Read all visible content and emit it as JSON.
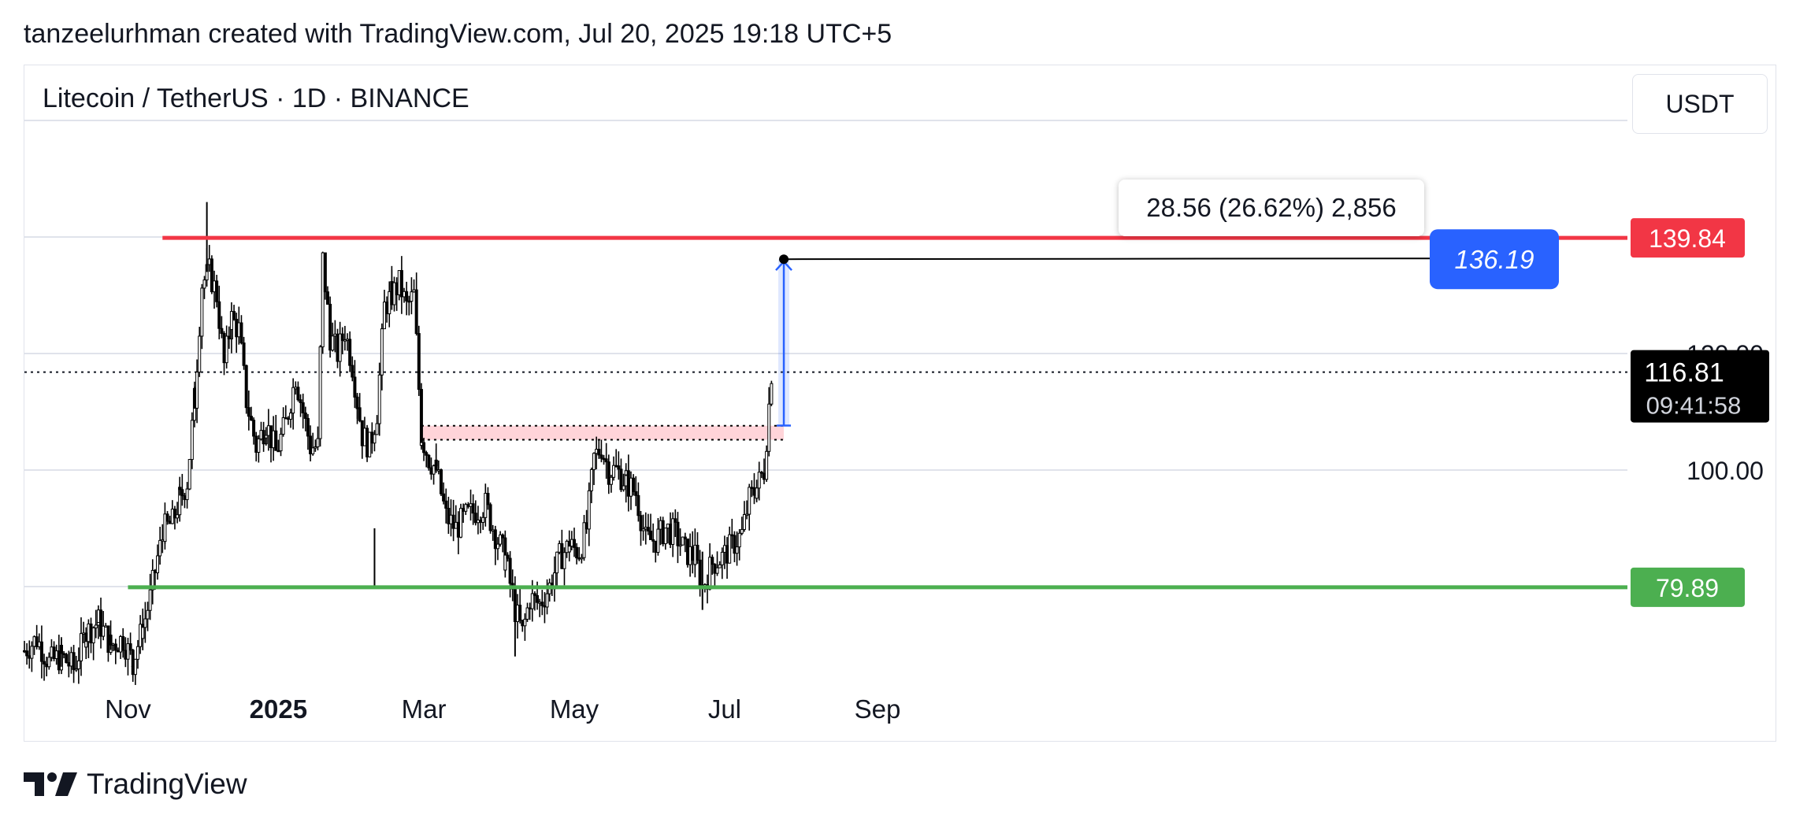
{
  "header": {
    "credit": "tanzeelurhman created with TradingView.com, Jul 20, 2025 19:18 UTC+5",
    "symbol": "Litecoin / TetherUS · 1D · BINANCE",
    "currency": "USDT"
  },
  "footer": {
    "brand": "TradingView"
  },
  "colors": {
    "resistance": "#f23645",
    "support": "#4caf50",
    "measure": "#2962ff",
    "zone_fill": "#ffcdd2",
    "candle": "#000000",
    "last_price_bg": "#000000"
  },
  "measure_tooltip": "28.56 (26.62%) 2,856",
  "chart_data": {
    "type": "candlestick",
    "title": "Litecoin / TetherUS · 1D · BINANCE",
    "x_ticks": [
      "Nov",
      "2025",
      "Mar",
      "May",
      "Jul",
      "Sep"
    ],
    "y_ticks": [
      "100.00",
      "120.00"
    ],
    "ylim": [
      64,
      146
    ],
    "grid": true,
    "levels": [
      {
        "name": "resistance",
        "value": 139.84,
        "label": "139.84",
        "from": "2024-11-15"
      },
      {
        "name": "support",
        "value": 79.89,
        "label": "79.89",
        "from": "2024-11-01"
      }
    ],
    "demand_zone": {
      "from": "2025-02-28",
      "to": "2025-07-25",
      "low": 105.2,
      "high": 107.6
    },
    "measure": {
      "date": "2025-07-25",
      "from": 107.63,
      "to": 136.19,
      "target_label": "136.19",
      "change": 28.56,
      "percent": 26.62,
      "ticks": 2856
    },
    "last_price": {
      "value": 116.81,
      "label": "116.81",
      "countdown": "09:41:58"
    },
    "ohlc_anchors": [
      [
        "2024-09-20",
        69
      ],
      [
        "2024-09-25",
        71
      ],
      [
        "2024-09-30",
        67
      ],
      [
        "2024-10-05",
        68
      ],
      [
        "2024-10-10",
        66
      ],
      [
        "2024-10-15",
        72
      ],
      [
        "2024-10-20",
        74
      ],
      [
        "2024-10-25",
        70
      ],
      [
        "2024-10-30",
        71
      ],
      [
        "2024-11-03",
        67
      ],
      [
        "2024-11-07",
        73
      ],
      [
        "2024-11-10",
        78
      ],
      [
        "2024-11-13",
        85
      ],
      [
        "2024-11-16",
        90
      ],
      [
        "2024-11-19",
        91
      ],
      [
        "2024-11-22",
        95
      ],
      [
        "2024-11-25",
        98
      ],
      [
        "2024-11-28",
        112
      ],
      [
        "2024-12-01",
        132
      ],
      [
        "2024-12-04",
        134
      ],
      [
        "2024-12-07",
        130
      ],
      [
        "2024-12-10",
        118
      ],
      [
        "2024-12-13",
        126
      ],
      [
        "2024-12-16",
        124
      ],
      [
        "2024-12-19",
        112
      ],
      [
        "2024-12-23",
        104
      ],
      [
        "2024-12-27",
        108
      ],
      [
        "2024-12-31",
        103
      ],
      [
        "2025-01-04",
        108
      ],
      [
        "2025-01-08",
        116
      ],
      [
        "2025-01-11",
        110
      ],
      [
        "2025-01-14",
        104
      ],
      [
        "2025-01-17",
        104
      ],
      [
        "2025-01-19",
        136
      ],
      [
        "2025-01-22",
        123
      ],
      [
        "2025-01-25",
        120
      ],
      [
        "2025-01-28",
        124
      ],
      [
        "2025-01-31",
        118
      ],
      [
        "2025-02-02",
        112
      ],
      [
        "2025-02-04",
        106
      ],
      [
        "2025-02-07",
        104
      ],
      [
        "2025-02-10",
        110
      ],
      [
        "2025-02-13",
        128
      ],
      [
        "2025-02-16",
        130
      ],
      [
        "2025-02-19",
        132
      ],
      [
        "2025-02-22",
        128
      ],
      [
        "2025-02-25",
        130
      ],
      [
        "2025-02-28",
        106
      ],
      [
        "2025-03-03",
        102
      ],
      [
        "2025-03-06",
        100
      ],
      [
        "2025-03-10",
        92
      ],
      [
        "2025-03-14",
        90
      ],
      [
        "2025-03-18",
        92
      ],
      [
        "2025-03-22",
        93
      ],
      [
        "2025-03-26",
        94
      ],
      [
        "2025-03-30",
        89
      ],
      [
        "2025-04-03",
        85
      ],
      [
        "2025-04-07",
        76
      ],
      [
        "2025-04-10",
        72
      ],
      [
        "2025-04-13",
        78
      ],
      [
        "2025-04-17",
        77
      ],
      [
        "2025-04-21",
        80
      ],
      [
        "2025-04-25",
        85
      ],
      [
        "2025-04-29",
        87
      ],
      [
        "2025-05-03",
        86
      ],
      [
        "2025-05-06",
        90
      ],
      [
        "2025-05-09",
        102
      ],
      [
        "2025-05-12",
        104
      ],
      [
        "2025-05-15",
        100
      ],
      [
        "2025-05-18",
        100
      ],
      [
        "2025-05-22",
        98
      ],
      [
        "2025-05-26",
        96
      ],
      [
        "2025-05-30",
        88
      ],
      [
        "2025-06-03",
        88
      ],
      [
        "2025-06-07",
        90
      ],
      [
        "2025-06-11",
        89
      ],
      [
        "2025-06-15",
        86
      ],
      [
        "2025-06-19",
        85
      ],
      [
        "2025-06-22",
        80
      ],
      [
        "2025-06-26",
        84
      ],
      [
        "2025-06-30",
        85
      ],
      [
        "2025-07-04",
        87
      ],
      [
        "2025-07-08",
        89
      ],
      [
        "2025-07-11",
        95
      ],
      [
        "2025-07-14",
        97
      ],
      [
        "2025-07-17",
        100
      ],
      [
        "2025-07-20",
        116.81
      ]
    ]
  }
}
